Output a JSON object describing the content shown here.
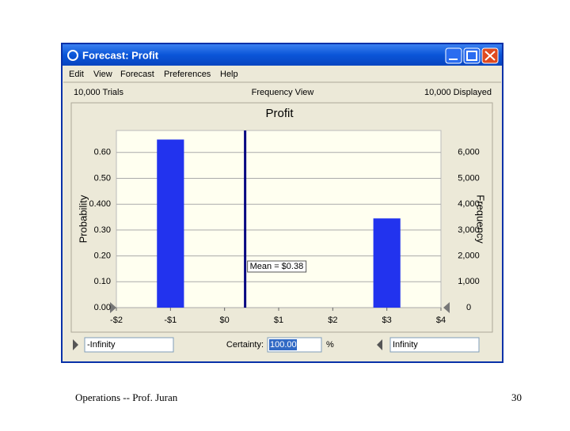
{
  "window": {
    "title": "Forecast: Profit",
    "menu": [
      "Edit",
      "View",
      "Forecast",
      "Preferences",
      "Help"
    ],
    "trials": "10,000 Trials",
    "view": "Frequency View",
    "displayed": "10,000 Displayed",
    "lower_bound": "-Infinity",
    "certainty_label": "Certainty:",
    "certainty": "100.00",
    "certainty_unit": "%",
    "upper_bound": "Infinity"
  },
  "footer": {
    "text": "Operations  --  Prof. Juran",
    "page": "30"
  },
  "chart_data": {
    "type": "bar",
    "title": "Profit",
    "ylabel": "Probability",
    "y2label": "Frequency",
    "x": [
      -1,
      3
    ],
    "values": [
      0.65,
      0.345
    ],
    "color": "#2233ee",
    "xlim": [
      -2,
      4
    ],
    "xticks": [
      {
        "value": -2,
        "label": "-$2"
      },
      {
        "value": -1,
        "label": "-$1"
      },
      {
        "value": 0,
        "label": "$0"
      },
      {
        "value": 1,
        "label": "$1"
      },
      {
        "value": 2,
        "label": "$2"
      },
      {
        "value": 3,
        "label": "$3"
      },
      {
        "value": 4,
        "label": "$4"
      }
    ],
    "ylim": [
      0,
      0.685
    ],
    "yticks": [
      {
        "value": 0,
        "label": "0.00"
      },
      {
        "value": 0.1,
        "label": "0.10"
      },
      {
        "value": 0.2,
        "label": "0.20"
      },
      {
        "value": 0.3,
        "label": "0.30"
      },
      {
        "value": 0.4,
        "label": "0.400"
      },
      {
        "value": 0.5,
        "label": "0.50"
      },
      {
        "value": 0.6,
        "label": "0.60"
      }
    ],
    "y2lim": [
      0,
      6850
    ],
    "y2ticks": [
      0,
      {
        "value": 1000,
        "label": "1,000"
      },
      {
        "value": 2000,
        "label": "2,000"
      },
      {
        "value": 3000,
        "label": "3,000"
      },
      {
        "value": 4000,
        "label": "4,000"
      },
      {
        "value": 5000,
        "label": "5,000"
      },
      {
        "value": 6000,
        "label": "6,000"
      }
    ],
    "grid": true,
    "mean": 0.38,
    "mean_label": "Mean = $0.38"
  }
}
